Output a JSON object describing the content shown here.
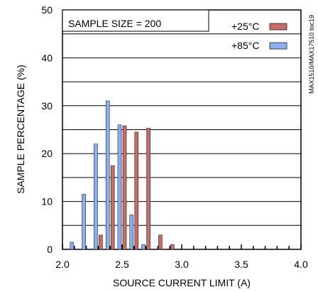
{
  "chart_data": {
    "type": "bar",
    "xlabel": "SOURCE CURRENT LIMIT (A)",
    "ylabel": "SAMPLE PERCENTAGE (%)",
    "xlim": [
      2.0,
      4.0
    ],
    "ylim": [
      0,
      50
    ],
    "x_ticks": [
      "2.0",
      "2.5",
      "3.0",
      "3.5",
      "4.0"
    ],
    "y_ticks": [
      "0",
      "10",
      "20",
      "30",
      "40",
      "50"
    ],
    "grid": "horizontal",
    "legend_placement": "top-right",
    "annotation": "SAMPLE SIZE = 200",
    "side_note": "MAX1510/MAX17510 toc19",
    "series": [
      {
        "name": "+25°C",
        "color": "#c96b66",
        "x": [
          2.3,
          2.4,
          2.5,
          2.6,
          2.7,
          2.8,
          2.9
        ],
        "values": [
          3.0,
          17.5,
          25.8,
          24.5,
          25.3,
          3.0,
          1.0
        ]
      },
      {
        "name": "+85°C",
        "color": "#8bb0f2",
        "x": [
          2.1,
          2.2,
          2.3,
          2.4,
          2.5,
          2.6,
          2.7
        ],
        "values": [
          1.5,
          11.5,
          22.0,
          31.0,
          26.0,
          7.2,
          1.0
        ]
      }
    ]
  }
}
